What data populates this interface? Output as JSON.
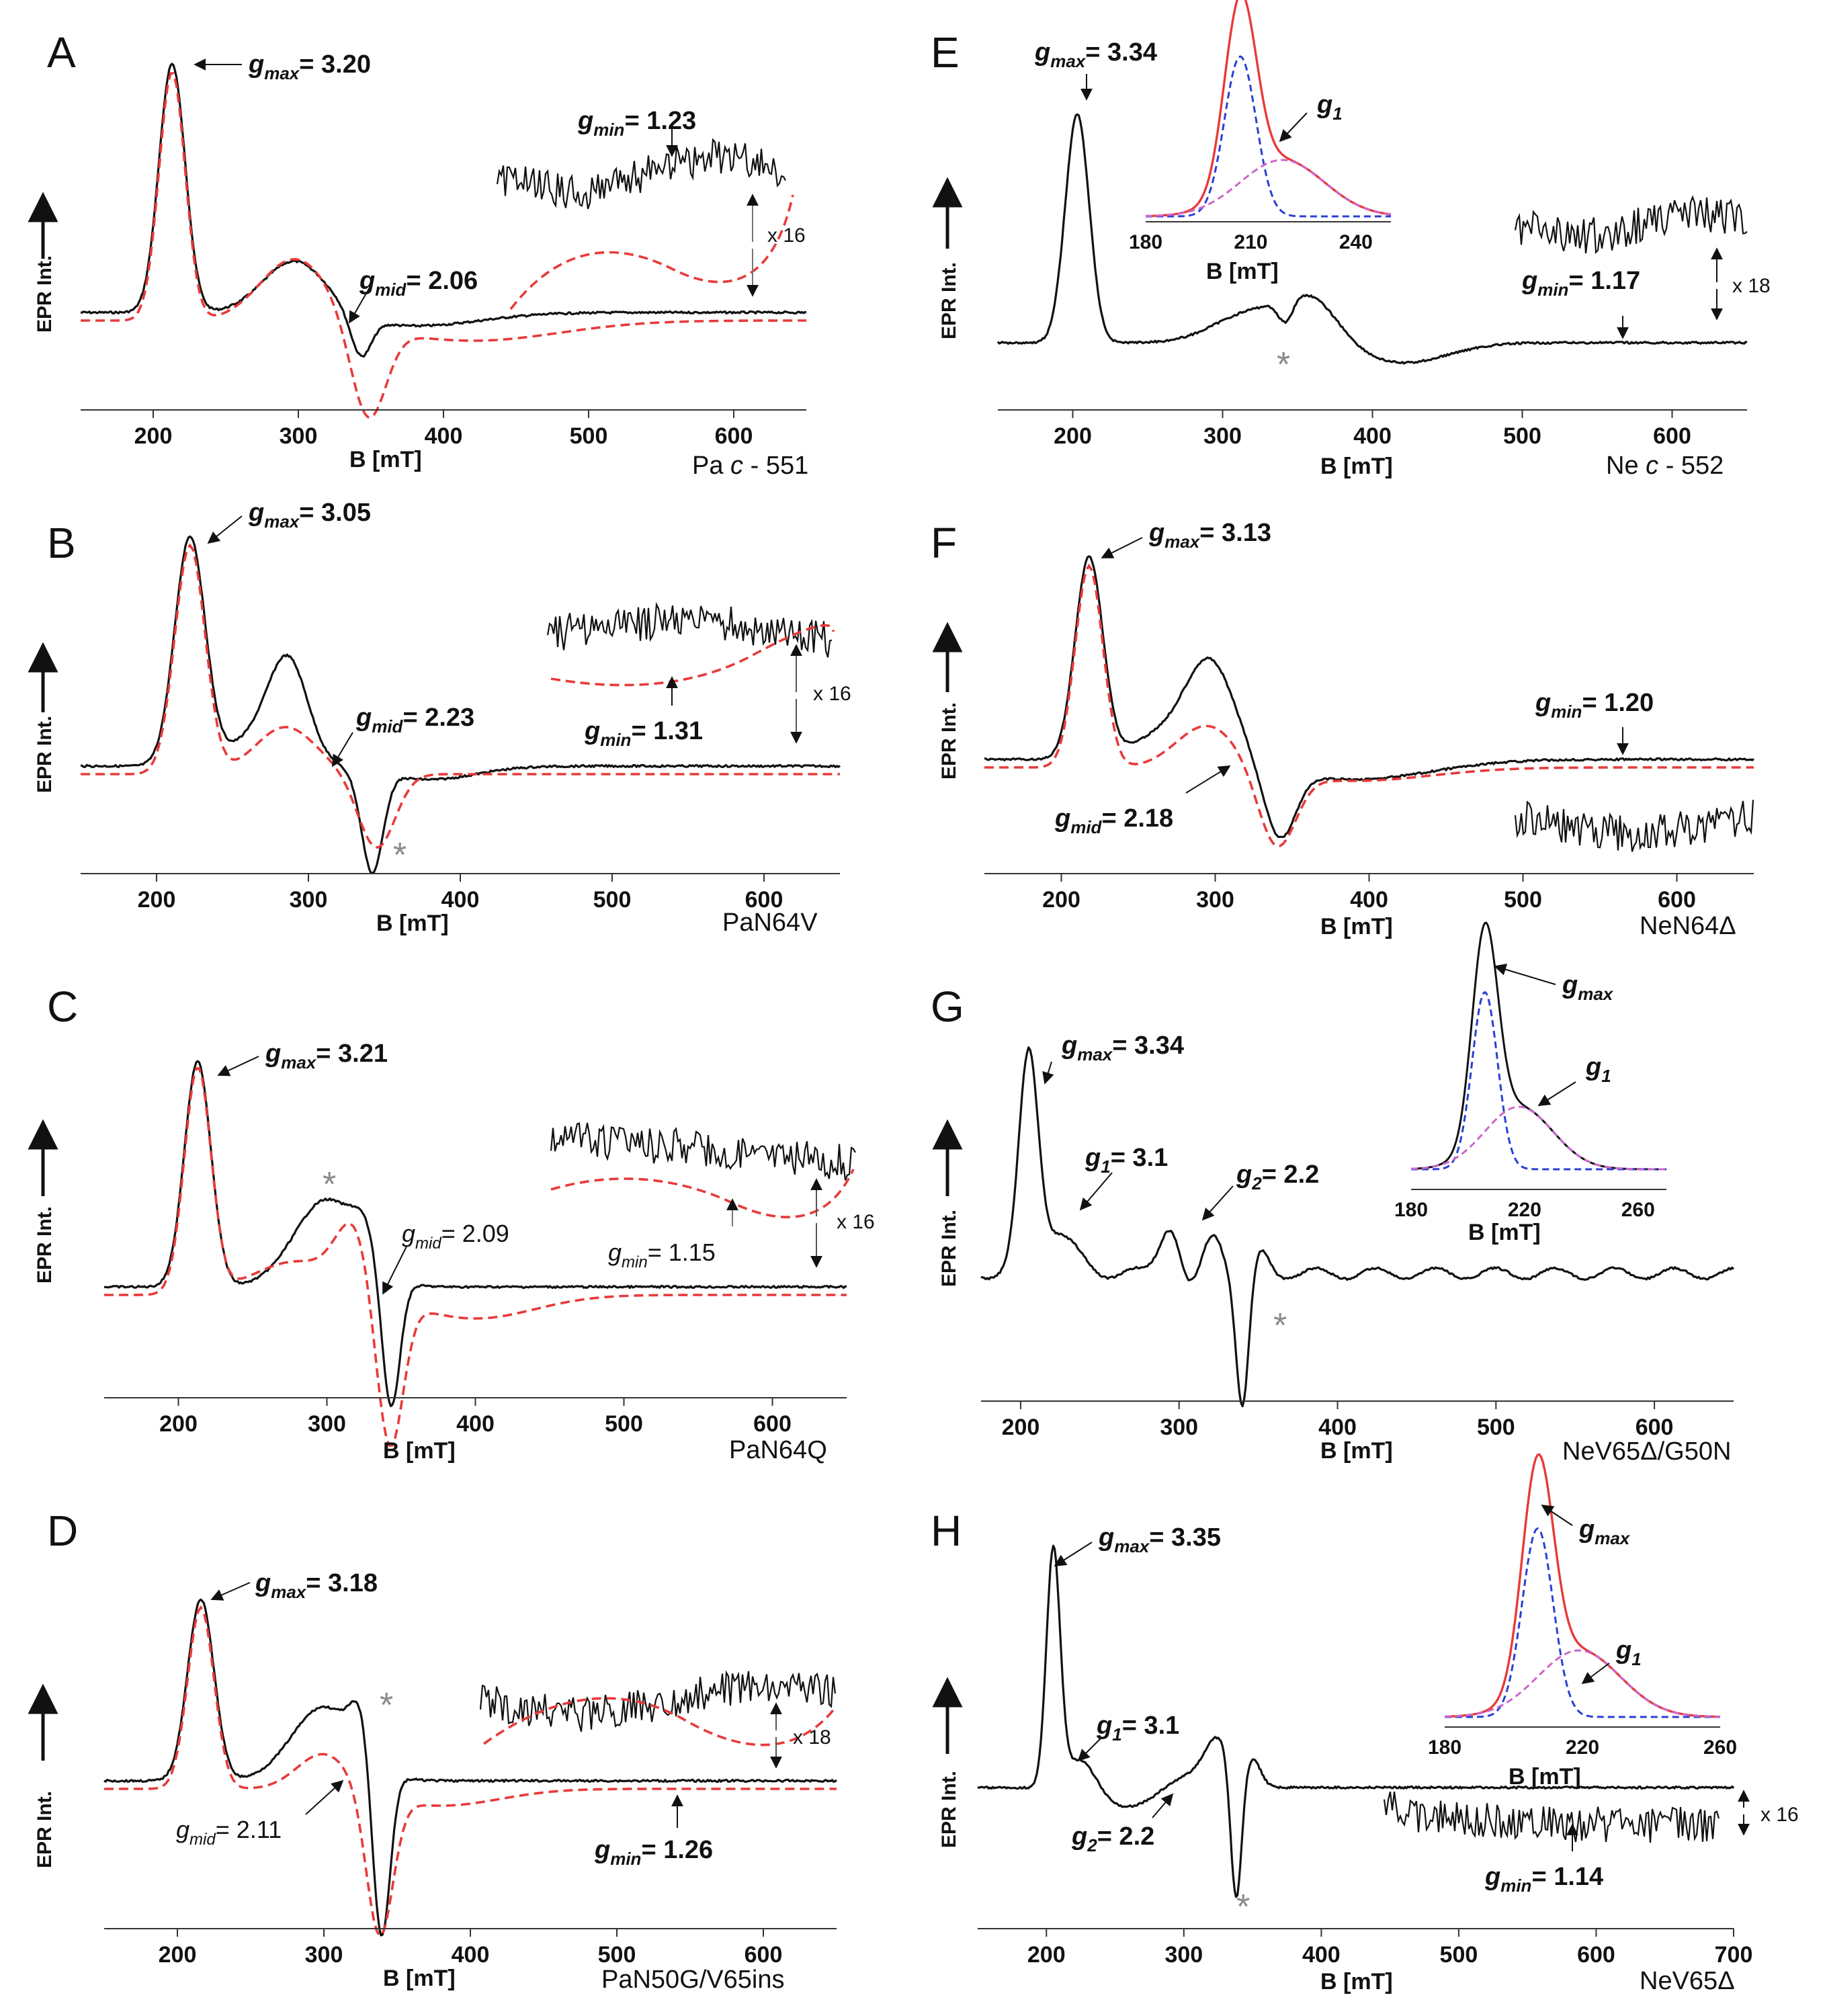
{
  "figure_type": "EPR spectra of cytochrome c variants",
  "axis_ylabel": "EPR Int.",
  "axis_xlabel": "B [mT]",
  "colors": {
    "trace": "#111111",
    "fit": "#e83a3a",
    "comp_blue": "#2a3fd6",
    "comp_magenta": "#cc66cc",
    "star": "#8a8a8a"
  },
  "chart_data": [
    {
      "panel": "A",
      "type": "line",
      "sample_parts": [
        "Pa ",
        "c",
        " - 551"
      ],
      "xlabel": "B [mT]",
      "ylabel": "EPR Int.",
      "xlim": [
        150,
        650
      ],
      "xticks": [
        "200",
        "300",
        "400",
        "500",
        "600"
      ],
      "peaks": {
        "gmax_B": 213,
        "mid_B": 300,
        "dip_B": 340
      },
      "annotations": {
        "gmax": "= 3.20",
        "gmid": "= 2.06",
        "gmin": "= 1.23"
      },
      "scale": "x 16",
      "series": [
        {
          "name": "experimental"
        },
        {
          "name": "simulation"
        }
      ]
    },
    {
      "panel": "B",
      "type": "line",
      "sample": "PaN64V",
      "xlabel": "B [mT]",
      "ylabel": "EPR Int.",
      "xlim": [
        150,
        650
      ],
      "xticks": [
        "200",
        "300",
        "400",
        "500",
        "600"
      ],
      "peaks": {
        "gmax_B": 222,
        "mid_B": 288,
        "dip_B": 342
      },
      "annotations": {
        "gmax": "= 3.05",
        "gmid": "= 2.23",
        "gmin": "= 1.31"
      },
      "scale": "x 16",
      "star": "*",
      "series": [
        {
          "name": "experimental"
        },
        {
          "name": "simulation"
        }
      ]
    },
    {
      "panel": "C",
      "type": "line",
      "sample": "PaN64Q",
      "xlabel": "B [mT]",
      "ylabel": "EPR Int.",
      "xlim": [
        150,
        650
      ],
      "xticks": [
        "200",
        "300",
        "400",
        "500",
        "600"
      ],
      "peaks": {
        "gmax_B": 213,
        "mid_B": 305,
        "dip_B": 342
      },
      "annotations": {
        "gmax": "= 3.21",
        "gmid": "= 2.09",
        "gmin": "= 1.15"
      },
      "scale": "x 16",
      "star": "*",
      "series": [
        {
          "name": "experimental"
        },
        {
          "name": "simulation"
        }
      ]
    },
    {
      "panel": "D",
      "type": "line",
      "sample": "PaN50G/V65ins",
      "xlabel": "B [mT]",
      "ylabel": "EPR Int.",
      "xlim": [
        150,
        650
      ],
      "xticks": [
        "200",
        "300",
        "400",
        "500",
        "600"
      ],
      "peaks": {
        "gmax_B": 216,
        "mid_B": 305,
        "dip_B": 338
      },
      "annotations": {
        "gmax": "= 3.18",
        "gmid": "= 2.11",
        "gmin": "= 1.26"
      },
      "scale": "x 18",
      "star": "*",
      "series": [
        {
          "name": "experimental"
        },
        {
          "name": "simulation"
        }
      ]
    },
    {
      "panel": "E",
      "type": "line",
      "sample_parts": [
        "Ne ",
        "c",
        " - 552"
      ],
      "xlabel": "B [mT]",
      "ylabel": "EPR Int.",
      "xlim": [
        150,
        650
      ],
      "xticks": [
        "200",
        "300",
        "400",
        "500",
        "600"
      ],
      "peaks": {
        "gmax_B": 203,
        "mid_B": 355,
        "dip_B": 420
      },
      "annotations": {
        "gmax": "= 3.34",
        "gmin": "= 1.17",
        "g1": "g",
        "g1_sub": "1"
      },
      "scale": "x 18",
      "star": "*",
      "inset": {
        "xlim": [
          180,
          250
        ],
        "xticks": [
          "180",
          "210",
          "240"
        ],
        "xlabel": "B [mT]",
        "peak_B": 207
      },
      "series": [
        {
          "name": "experimental"
        }
      ]
    },
    {
      "panel": "F",
      "type": "line",
      "sample": "NeN64Δ",
      "xlabel": "B [mT]",
      "ylabel": "EPR Int.",
      "xlim": [
        150,
        650
      ],
      "xticks": [
        "200",
        "300",
        "400",
        "500",
        "600"
      ],
      "peaks": {
        "gmax_B": 218,
        "mid_B": 298,
        "dip_B": 340
      },
      "annotations": {
        "gmax": "= 3.13",
        "gmid": "= 2.18",
        "gmin": "= 1.20"
      },
      "series": [
        {
          "name": "experimental"
        },
        {
          "name": "simulation"
        }
      ]
    },
    {
      "panel": "G",
      "type": "line",
      "sample": "NeV65Δ/G50N",
      "xlabel": "B [mT]",
      "ylabel": "EPR Int.",
      "xlim": [
        175,
        650
      ],
      "xticks": [
        "200",
        "300",
        "400",
        "500",
        "600"
      ],
      "peaks": {
        "gmax_B": 205,
        "g2_B": 295,
        "dip_B": 340
      },
      "annotations": {
        "gmax": "= 3.34",
        "g1": "= 3.1",
        "g2": "= 2.2",
        "g1_label": "g",
        "g1_sub": "1",
        "gmax_label": "g",
        "gmax_sub": "max"
      },
      "star": "*",
      "inset": {
        "xlim": [
          180,
          270
        ],
        "xticks": [
          "180",
          "220",
          "260"
        ],
        "xlabel": "B [mT]",
        "peak_B": 206
      },
      "series": [
        {
          "name": "experimental"
        }
      ]
    },
    {
      "panel": "H",
      "type": "line",
      "sample": "NeV65Δ",
      "xlabel": "B [mT]",
      "ylabel": "EPR Int.",
      "xlim": [
        150,
        700
      ],
      "xticks": [
        "200",
        "300",
        "400",
        "500",
        "600",
        "700"
      ],
      "peaks": {
        "gmax_B": 205,
        "g2_B": 300,
        "dip_B": 338
      },
      "annotations": {
        "gmax": "= 3.35",
        "g1": "= 3.1",
        "g2": "= 2.2",
        "gmin": "= 1.14",
        "g1_label": "g",
        "g1_sub": "1",
        "gmax_label": "g",
        "gmax_sub": "max"
      },
      "scale": "x 16",
      "star": "*",
      "inset": {
        "xlim": [
          180,
          260
        ],
        "xticks": [
          "180",
          "220",
          "260"
        ],
        "xlabel": "B [mT]",
        "peak_B": 207
      },
      "series": [
        {
          "name": "experimental"
        }
      ]
    }
  ]
}
